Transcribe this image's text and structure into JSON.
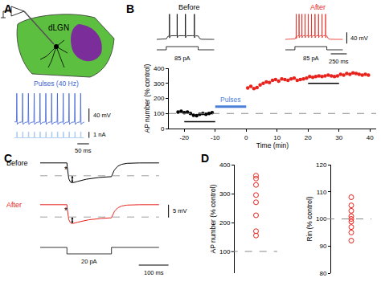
{
  "panel_labels": [
    "A",
    "B",
    "C",
    "D"
  ],
  "schematic": {
    "label": "dLGN",
    "color": "#5cbf3f",
    "nucleus_color": "#7b2d9a"
  },
  "chart_data": [
    {
      "panel": "A",
      "type": "trace",
      "title": "Pulses (40 Hz)",
      "color": "#3b5fd4",
      "stim_color": "#9cc3ec",
      "duration": 300,
      "baseline": -65,
      "spike_peak": 20,
      "spike_times": [
        10,
        35,
        60,
        85,
        110,
        135,
        160,
        185,
        210,
        235,
        260,
        285
      ],
      "pulse_amplitude": 1,
      "scale_bars": [
        {
          "value": 40,
          "label": "40 mV",
          "axis": "voltage"
        },
        {
          "value": 1,
          "label": "1 nA",
          "axis": "current"
        },
        {
          "value": 50,
          "label": "50 ms",
          "axis": "time"
        }
      ]
    },
    {
      "panel": "B",
      "type": "trace_pair",
      "duration": 900,
      "step": [
        150,
        650
      ],
      "step_label": "85 pA",
      "baseline": -65,
      "plateau": -52,
      "spike_peak": 25,
      "series": [
        {
          "name": "Before",
          "color": "#000000",
          "spike_times": [
            200,
            320,
            450,
            590
          ]
        },
        {
          "name": "After",
          "color": "#e8231d",
          "spike_times": [
            170,
            215,
            260,
            310,
            360,
            410,
            465,
            520,
            575,
            630
          ]
        }
      ],
      "scale_bars": [
        {
          "value": 40,
          "label": "40 mV",
          "axis": "voltage"
        },
        {
          "value": 250,
          "label": "250 ms",
          "axis": "time"
        }
      ]
    },
    {
      "panel": "B",
      "type": "scatter",
      "xlabel": "Time (min)",
      "ylabel": "AP number (% control)",
      "xlim": [
        -25,
        42
      ],
      "ylim": [
        0,
        400
      ],
      "xticks": [
        -20,
        -10,
        0,
        10,
        20,
        30,
        40
      ],
      "yticks": [
        0,
        100,
        200,
        300,
        400
      ],
      "reference_line": 100,
      "series": [
        {
          "color": "#000000",
          "marker": "circle",
          "x": [
            -22,
            -21,
            -20,
            -19,
            -18,
            -17,
            -16,
            -15,
            -14,
            -13,
            -12,
            -11
          ],
          "values": [
            110,
            115,
            105,
            110,
            100,
            88,
            85,
            95,
            100,
            95,
            100,
            105
          ]
        },
        {
          "color": "#e8231d",
          "marker": "circle",
          "x": [
            0.5,
            1.5,
            2.5,
            3.5,
            4.5,
            5.5,
            6.5,
            7.5,
            8.5,
            9.5,
            10.5,
            11.5,
            12.5,
            13.5,
            14.5,
            15.5,
            16.5,
            17.5,
            18.5,
            19.5,
            20.5,
            21.5,
            22.5,
            23.5,
            24.5,
            25.5,
            26.5,
            27.5,
            28.5,
            29.5,
            30.5,
            31.5,
            32.5,
            33.5,
            34.5,
            35.5,
            36.5,
            37.5,
            38.5,
            39.5
          ],
          "values": [
            270,
            280,
            265,
            272,
            290,
            300,
            310,
            305,
            320,
            325,
            315,
            330,
            325,
            320,
            330,
            335,
            320,
            325,
            330,
            335,
            345,
            340,
            345,
            350,
            345,
            350,
            355,
            350,
            345,
            350,
            360,
            355,
            365,
            360,
            370,
            365,
            360,
            355,
            360,
            355
          ]
        }
      ],
      "periods": [
        {
          "label": "Pulses",
          "x": [
            -10,
            0
          ],
          "y": 145,
          "color": "#4a7fd8"
        },
        {
          "x": [
            -20,
            -10
          ],
          "y": 45,
          "color": "#000000"
        },
        {
          "x": [
            20,
            30
          ],
          "y": 300,
          "color": "#000000"
        }
      ]
    },
    {
      "panel": "C",
      "type": "trace_pair",
      "duration": 400,
      "step": [
        90,
        240
      ],
      "step_label": "20 pA",
      "baseline": -65,
      "marker_text": "*",
      "series": [
        {
          "name": "Before",
          "color": "#000000",
          "peak": -74,
          "steady": -70
        },
        {
          "name": "After",
          "color": "#e8231d",
          "peak": -73.5,
          "steady": -69.8
        }
      ],
      "scale_bars": [
        {
          "value": 5,
          "label": "5 mV",
          "axis": "voltage"
        },
        {
          "value": 100,
          "label": "100 ms",
          "axis": "time"
        }
      ]
    },
    {
      "panel": "D",
      "type": "strip",
      "ylabel": "AP number (% control)",
      "ylim": [
        25,
        400
      ],
      "yticks": [
        100,
        200,
        300,
        400
      ],
      "reference_line": 100,
      "color": "#e8231d",
      "marker": "open-circle",
      "values": [
        362,
        352,
        330,
        295,
        270,
        225,
        170,
        155
      ]
    },
    {
      "panel": "D",
      "type": "strip",
      "ylabel": "Rin (% control)",
      "ylim": [
        80,
        120
      ],
      "yticks": [
        80,
        90,
        100,
        110,
        120
      ],
      "reference_line": 100,
      "color": "#e8231d",
      "marker": "open-circle",
      "values": [
        108,
        105,
        103,
        101,
        100,
        99,
        97,
        95,
        92
      ]
    }
  ]
}
